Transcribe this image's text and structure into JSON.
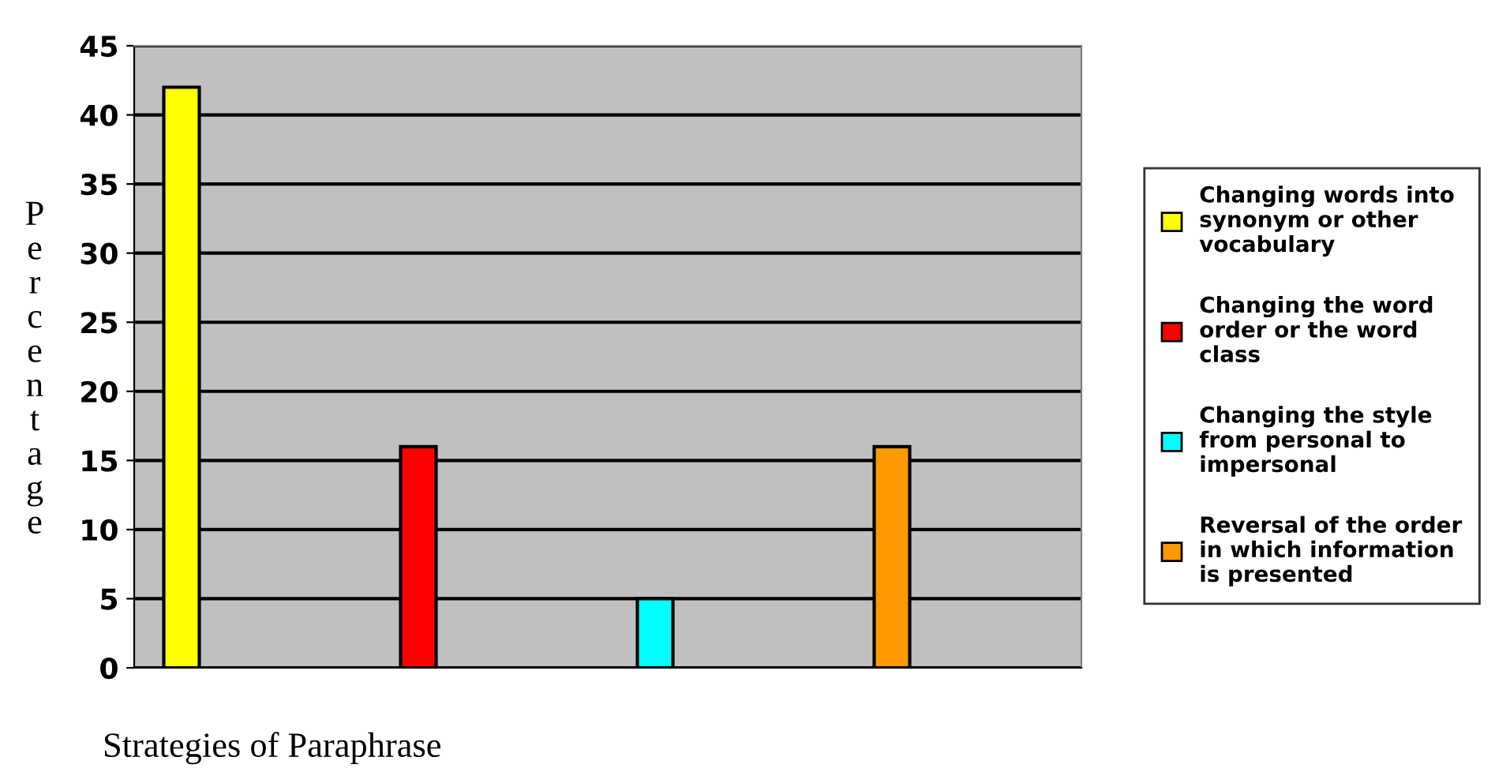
{
  "chart_data": {
    "type": "bar",
    "xlabel": "Strategies of Paraphrase",
    "ylabel": "Percentage",
    "categories": [
      null
    ],
    "series": [
      {
        "name": "Changing words into synonym or other vocabulary",
        "color": "#ffff00",
        "values": [
          42
        ]
      },
      {
        "name": "Changing the word order or the word class",
        "color": "#ff0000",
        "values": [
          16
        ]
      },
      {
        "name": "Changing the style from personal to impersonal",
        "color": "#00ffff",
        "values": [
          5
        ]
      },
      {
        "name": "Reversal of the order in which information is presented",
        "color": "#ff9900",
        "values": [
          16
        ]
      }
    ],
    "ylim": [
      0,
      45
    ],
    "yticks": [
      0,
      5,
      10,
      15,
      20,
      25,
      30,
      35,
      40,
      45
    ],
    "grid": "y",
    "legend": "right"
  }
}
